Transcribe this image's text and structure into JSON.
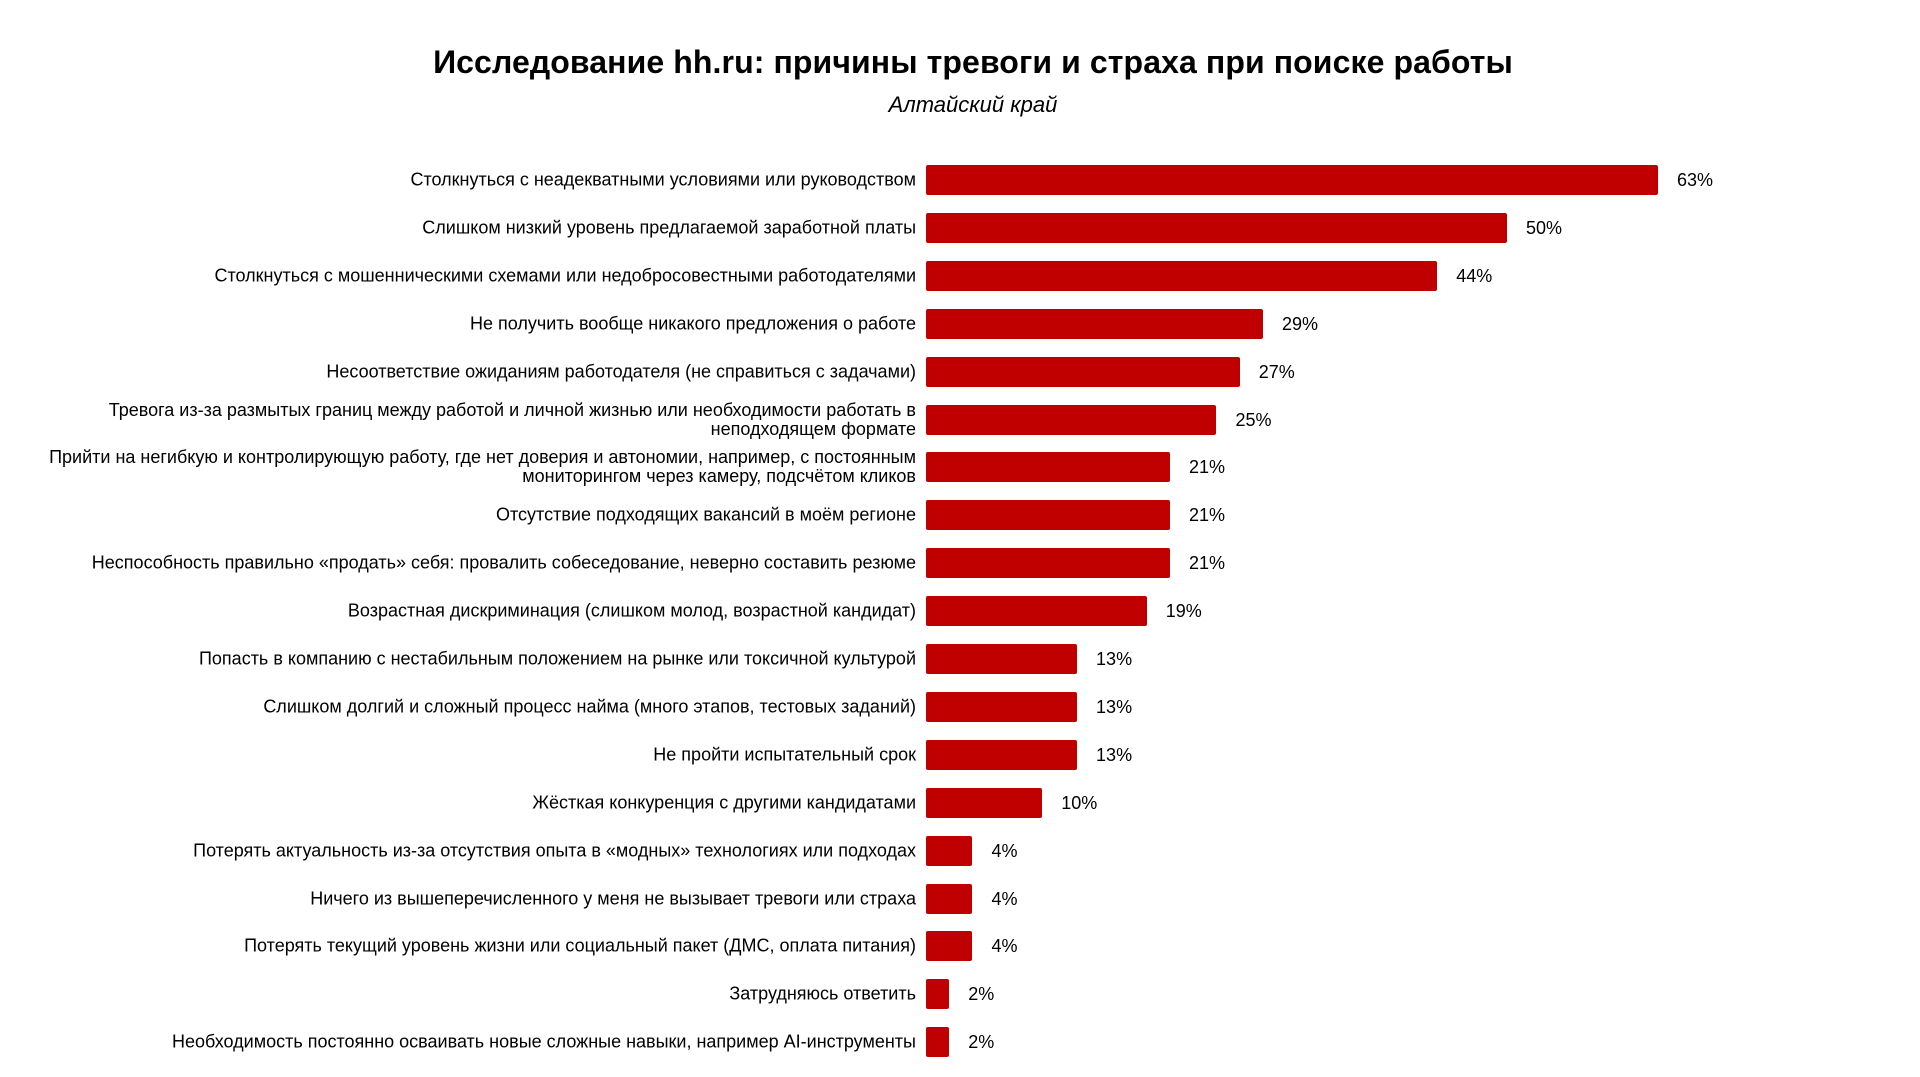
{
  "chart_data": {
    "type": "bar",
    "orientation": "horizontal",
    "title": "Исследование hh.ru: причины тревоги и страха при поиске работы",
    "subtitle": "Алтайский край",
    "value_suffix": "%",
    "bar_color": "#C00000",
    "xlim": [
      0,
      63
    ],
    "grid": false,
    "legend": "none",
    "categories": [
      "Столкнуться с неадекватными условиями или руководством",
      "Слишком низкий уровень предлагаемой заработной платы",
      "Столкнуться с мошенническими схемами или недобросовестными работодателями",
      "Не получить вообще никакого предложения о работе",
      "Несоответствие ожиданиям работодателя (не справиться с задачами)",
      "Тревога из-за размытых границ между работой и личной жизнью или необходимости работать в неподходящем формате",
      "Прийти на негибкую и контролирующую работу, где нет доверия и автономии, например, с постоянным мониторингом через камеру, подсчётом кликов",
      "Отсутствие подходящих вакансий в моём регионе",
      "Неспособность правильно «продать» себя: провалить собеседование, неверно составить резюме",
      "Возрастная дискриминация (слишком молод, возрастной кандидат)",
      "Попасть в компанию с нестабильным положением на рынке или токсичной культурой",
      "Слишком долгий и сложный процесс найма (много этапов, тестовых заданий)",
      "Не пройти испытательный срок",
      "Жёсткая конкуренция с другими кандидатами",
      "Потерять актуальность из-за отсутствия опыта в «модных» технологиях или подходах",
      "Ничего из вышеперечисленного у меня не вызывает тревоги или страха",
      "Потерять текущий уровень жизни или социальный пакет (ДМС, оплата питания)",
      "Затрудняюсь ответить",
      "Необходимость постоянно осваивать новые сложные навыки, например AI-инструменты"
    ],
    "values": [
      63,
      50,
      44,
      29,
      27,
      25,
      21,
      21,
      21,
      19,
      13,
      13,
      13,
      10,
      4,
      4,
      4,
      2,
      2
    ]
  }
}
